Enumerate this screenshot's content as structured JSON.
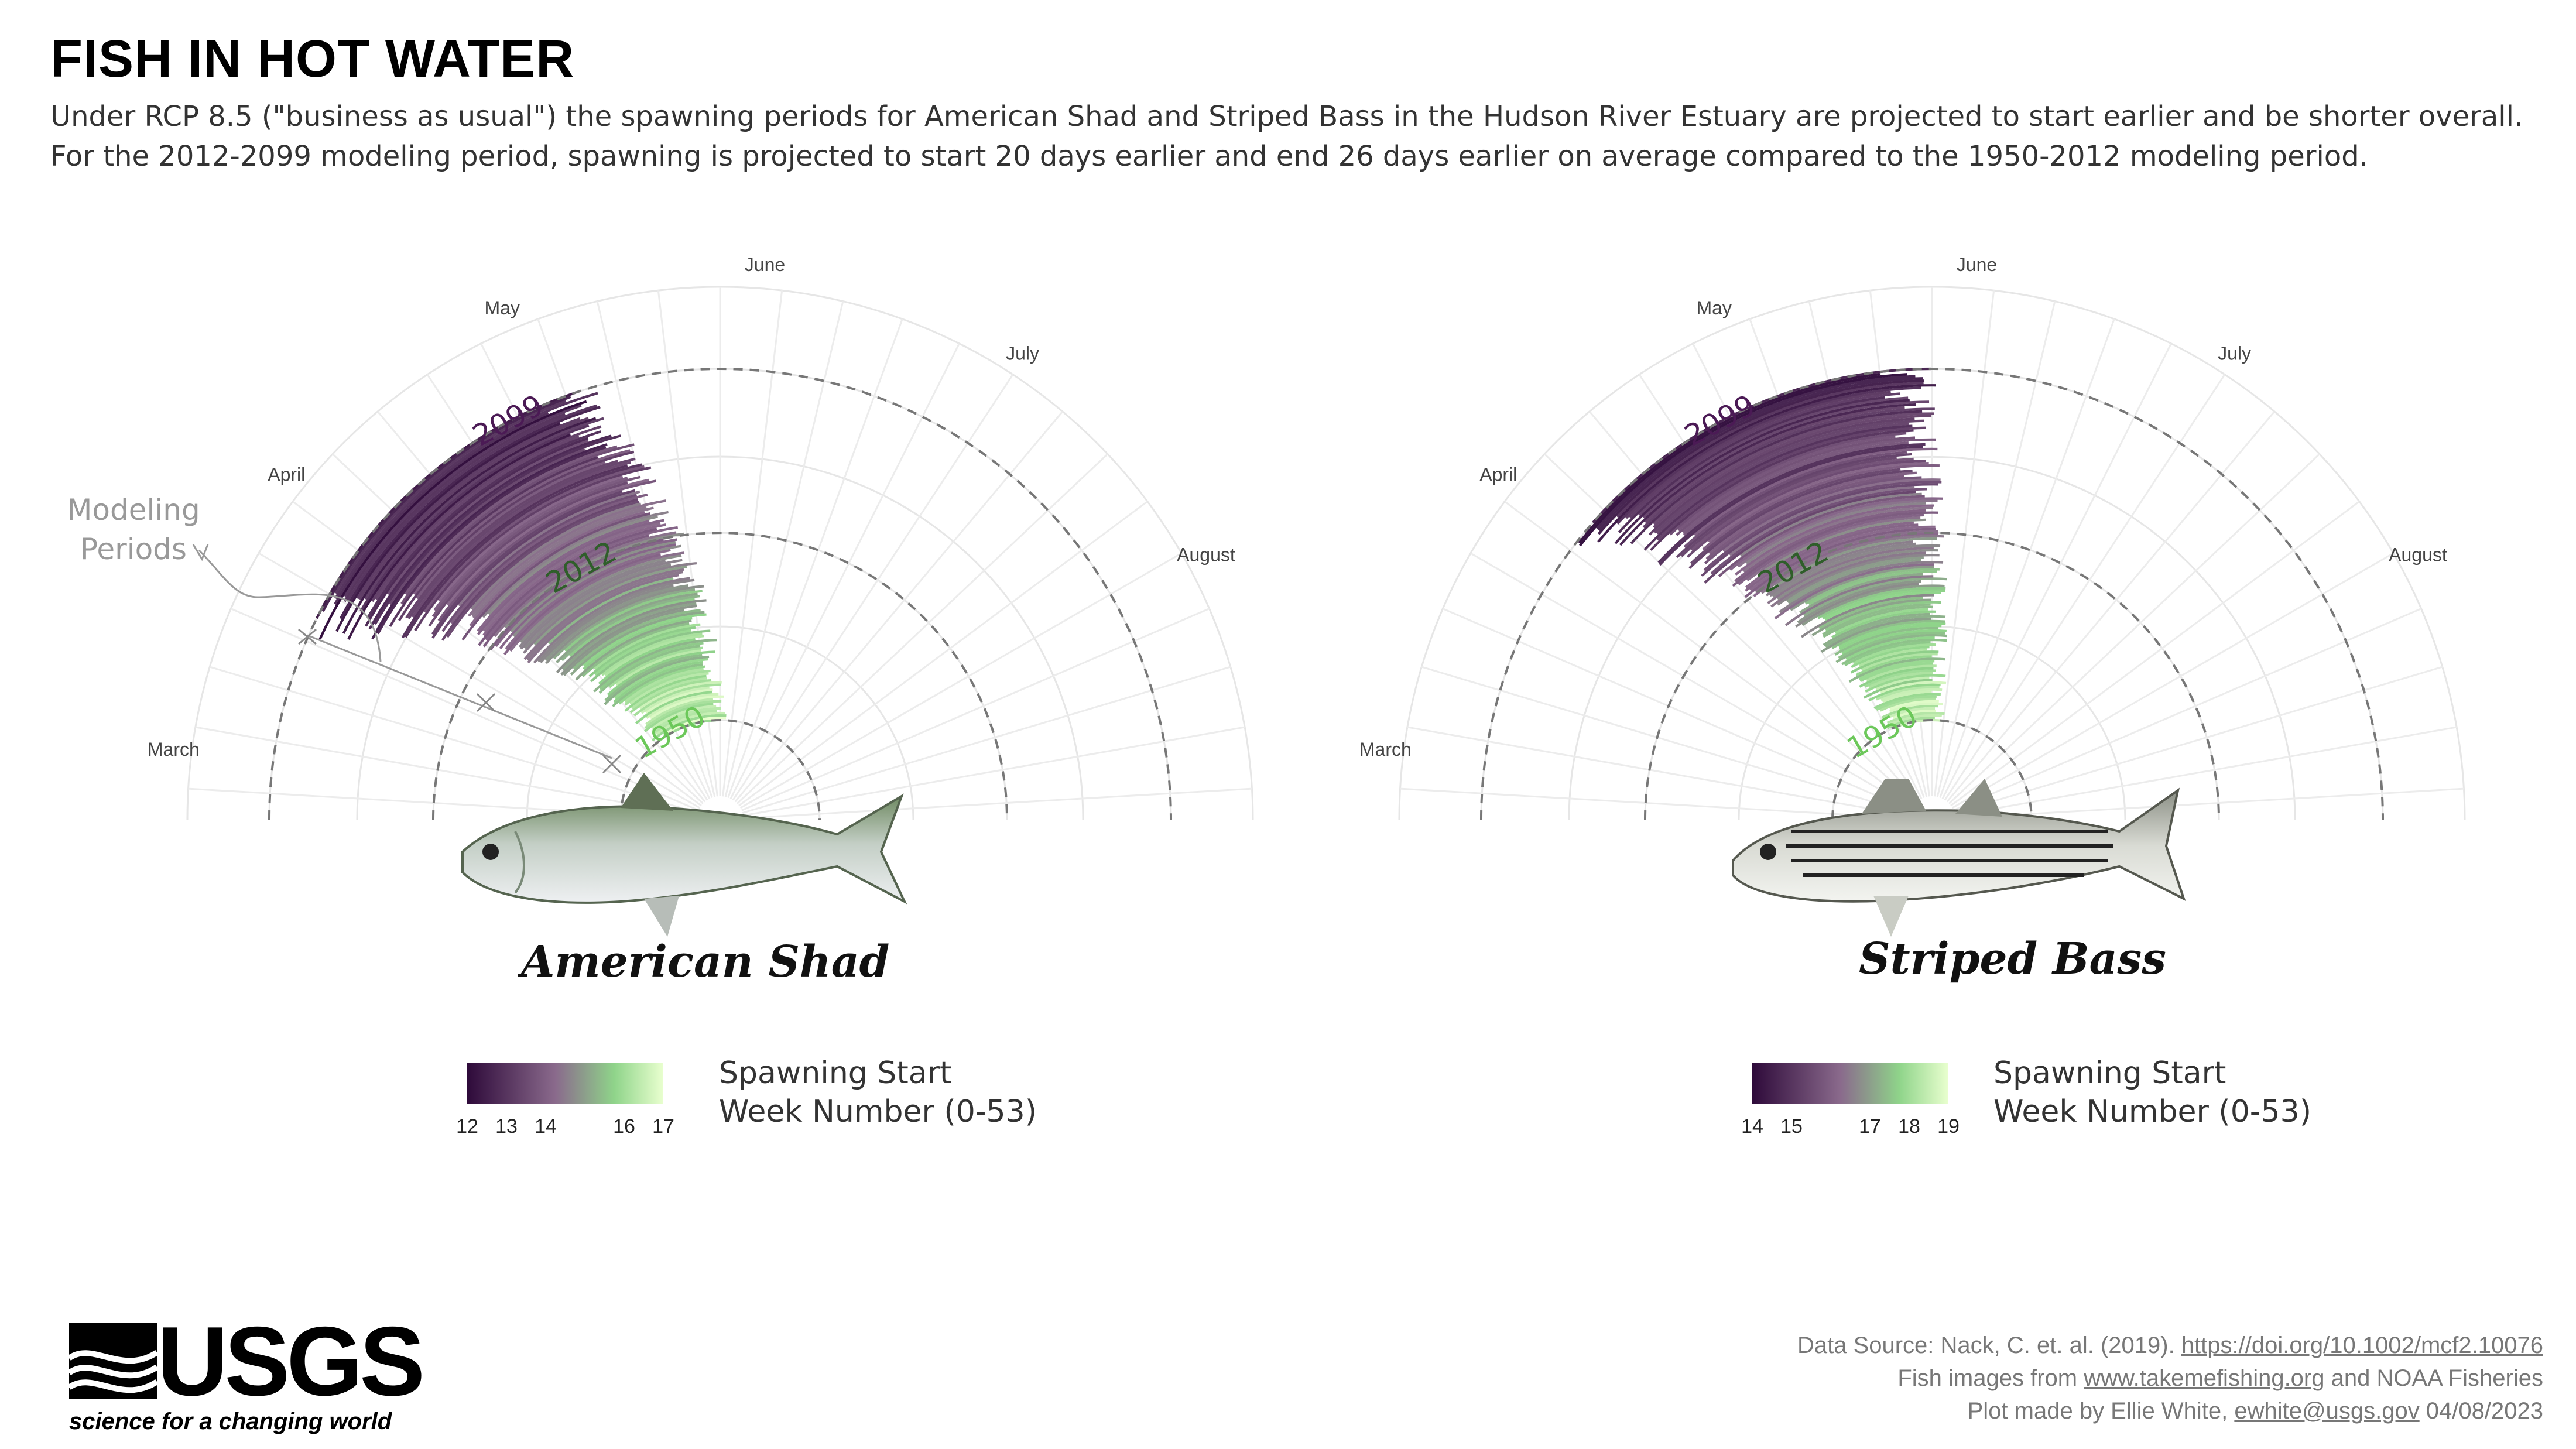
{
  "header": {
    "title": "FISH IN HOT WATER",
    "subtitle": "Under RCP 8.5 (\"business as usual\") the spawning periods for American Shad and Striped Bass in the Hudson River Estuary are projected to start earlier and be shorter overall. For the 2012-2099 modeling period, spawning is projected to start 20 days earlier and end 26 days earlier on average compared to the 1950-2012 modeling period."
  },
  "annotation": {
    "modeling_periods": [
      "Modeling",
      "Periods"
    ]
  },
  "months": [
    "March",
    "April",
    "May",
    "June",
    "July",
    "August"
  ],
  "period_labels": [
    "1950",
    "2012",
    "2099"
  ],
  "colors": {
    "start": "#2e0a3a",
    "mid": "#8a6a8c",
    "light": "#8fd48a",
    "end": "#e9ffcf",
    "label_1950": "#6cc85a",
    "label_2012": "#2f5e2a",
    "label_2099": "#4b1a55"
  },
  "legend_title": [
    "Spawning Start",
    "Week Number (0-53)"
  ],
  "chart_data": [
    {
      "type": "radial-bar",
      "species": "American Shad",
      "legend_ticks": [
        "12",
        "13",
        "14",
        "16",
        "17"
      ],
      "start_week_range": [
        12,
        17
      ],
      "periods": [
        {
          "year": "1950",
          "start_week": 16.5,
          "end_week": 22.0
        },
        {
          "year": "2012",
          "start_week": 15.0,
          "end_week": 20.8
        },
        {
          "year": "2099",
          "start_week": 12.5,
          "end_week": 19.0
        }
      ]
    },
    {
      "type": "radial-bar",
      "species": "Striped Bass",
      "legend_ticks": [
        "14",
        "15",
        "17",
        "18",
        "19"
      ],
      "start_week_range": [
        14,
        19
      ],
      "periods": [
        {
          "year": "1950",
          "start_week": 18.5,
          "end_week": 22.5
        },
        {
          "year": "2012",
          "start_week": 17.0,
          "end_week": 22.0
        },
        {
          "year": "2099",
          "start_week": 14.5,
          "end_week": 21.5
        }
      ]
    }
  ],
  "footer": {
    "source_prefix": "Data Source: Nack, C. et. al. (2019). ",
    "source_link": "https://doi.org/10.1002/mcf2.10076",
    "images_prefix": "Fish images from ",
    "images_link": "www.takemefishing.org",
    "images_suffix": " and  NOAA Fisheries",
    "author_prefix": "Plot made by Ellie White, ",
    "author_link": "ewhite@usgs.gov",
    "author_suffix": " 04/08/2023"
  },
  "logo": {
    "text": "USGS",
    "tagline": "science for a changing world"
  }
}
